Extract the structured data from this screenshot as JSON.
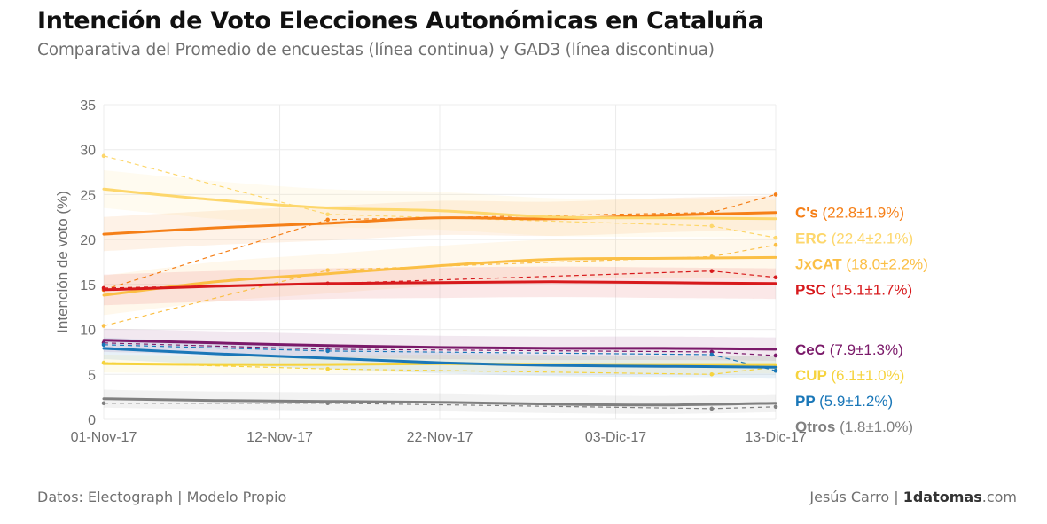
{
  "title": "Intención de Voto Elecciones Autonómicas en Cataluña",
  "subtitle": "Comparativa del Promedio de encuestas (línea continua) y GAD3 (línea discontinua)",
  "footer": {
    "source": "Datos: Electograph | Modelo Propio",
    "author": "Jesús Carro | ",
    "brand_bold": "1datomas",
    "brand_suffix": ".com"
  },
  "chart_data": {
    "type": "line",
    "title": "Intención de Voto Elecciones Autonómicas en Cataluña",
    "ylabel": "Intención de voto (%)",
    "xlabel": "",
    "ylim": [
      0,
      35
    ],
    "yticks": [
      0,
      5,
      10,
      15,
      20,
      25,
      30,
      35
    ],
    "xlim": [
      "2017-11-01",
      "2017-12-13"
    ],
    "xticks": [
      {
        "date": "2017-11-01",
        "label": "01-Nov-17"
      },
      {
        "date": "2017-11-12",
        "label": "12-Nov-17"
      },
      {
        "date": "2017-11-22",
        "label": "22-Nov-17"
      },
      {
        "date": "2017-12-03",
        "label": "03-Dic-17"
      },
      {
        "date": "2017-12-13",
        "label": "13-Dic-17"
      }
    ],
    "grid": true,
    "legend": "right, end-of-line labels",
    "series": [
      {
        "name": "C's",
        "value_label": "(22.8±1.9%)",
        "color": "#f57f17",
        "margin": 1.9,
        "average": [
          [
            "2017-11-01",
            20.6
          ],
          [
            "2017-11-08",
            21.3
          ],
          [
            "2017-11-15",
            21.8
          ],
          [
            "2017-11-22",
            22.4
          ],
          [
            "2017-11-29",
            22.3
          ],
          [
            "2017-12-06",
            22.7
          ],
          [
            "2017-12-13",
            23.0
          ]
        ],
        "gad3": [
          [
            "2017-11-01",
            14.4
          ],
          [
            "2017-11-15",
            22.2
          ],
          [
            "2017-12-09",
            23.0
          ],
          [
            "2017-12-13",
            25.0
          ]
        ]
      },
      {
        "name": "ERC",
        "value_label": "(22.4±2.1%)",
        "color": "#fdd76c",
        "margin": 2.1,
        "average": [
          [
            "2017-11-01",
            25.6
          ],
          [
            "2017-11-08",
            24.4
          ],
          [
            "2017-11-15",
            23.5
          ],
          [
            "2017-11-22",
            23.2
          ],
          [
            "2017-11-29",
            22.5
          ],
          [
            "2017-12-06",
            22.4
          ],
          [
            "2017-12-13",
            22.3
          ]
        ],
        "gad3": [
          [
            "2017-11-01",
            29.3
          ],
          [
            "2017-11-15",
            22.8
          ],
          [
            "2017-12-09",
            21.5
          ],
          [
            "2017-12-13",
            20.2
          ]
        ]
      },
      {
        "name": "JxCAT",
        "value_label": "(18.0±2.2%)",
        "color": "#fbbf45",
        "margin": 2.2,
        "average": [
          [
            "2017-11-01",
            13.8
          ],
          [
            "2017-11-08",
            15.3
          ],
          [
            "2017-11-15",
            16.2
          ],
          [
            "2017-11-22",
            17.1
          ],
          [
            "2017-11-29",
            17.8
          ],
          [
            "2017-12-06",
            17.9
          ],
          [
            "2017-12-13",
            18.0
          ]
        ],
        "gad3": [
          [
            "2017-11-01",
            10.4
          ],
          [
            "2017-11-15",
            16.6
          ],
          [
            "2017-12-09",
            18.1
          ],
          [
            "2017-12-13",
            19.4
          ]
        ]
      },
      {
        "name": "PSC",
        "value_label": "(15.1±1.7%)",
        "color": "#d7191c",
        "margin": 1.7,
        "average": [
          [
            "2017-11-01",
            14.4
          ],
          [
            "2017-11-08",
            14.8
          ],
          [
            "2017-11-15",
            15.1
          ],
          [
            "2017-11-22",
            15.2
          ],
          [
            "2017-11-29",
            15.3
          ],
          [
            "2017-12-06",
            15.2
          ],
          [
            "2017-12-13",
            15.1
          ]
        ],
        "gad3": [
          [
            "2017-11-01",
            14.6
          ],
          [
            "2017-11-15",
            15.1
          ],
          [
            "2017-12-09",
            16.5
          ],
          [
            "2017-12-13",
            15.8
          ]
        ]
      },
      {
        "name": "CeC",
        "value_label": "(7.9±1.3%)",
        "color": "#7b1a6a",
        "margin": 1.3,
        "average": [
          [
            "2017-11-01",
            8.8
          ],
          [
            "2017-11-08",
            8.5
          ],
          [
            "2017-11-15",
            8.2
          ],
          [
            "2017-11-22",
            8.0
          ],
          [
            "2017-11-29",
            7.9
          ],
          [
            "2017-12-06",
            7.9
          ],
          [
            "2017-12-13",
            7.8
          ]
        ],
        "gad3": [
          [
            "2017-11-01",
            8.5
          ],
          [
            "2017-11-15",
            7.8
          ],
          [
            "2017-12-09",
            7.5
          ],
          [
            "2017-12-13",
            7.1
          ]
        ]
      },
      {
        "name": "CUP",
        "value_label": "(6.1±1.0%)",
        "color": "#f6d33d",
        "margin": 1.0,
        "average": [
          [
            "2017-11-01",
            6.2
          ],
          [
            "2017-11-08",
            6.1
          ],
          [
            "2017-11-15",
            6.1
          ],
          [
            "2017-11-22",
            6.2
          ],
          [
            "2017-11-29",
            6.1
          ],
          [
            "2017-12-06",
            6.1
          ],
          [
            "2017-12-13",
            6.1
          ]
        ],
        "gad3": [
          [
            "2017-11-01",
            6.3
          ],
          [
            "2017-11-15",
            5.6
          ],
          [
            "2017-12-09",
            5.0
          ],
          [
            "2017-12-13",
            5.8
          ]
        ]
      },
      {
        "name": "PP",
        "value_label": "(5.9±1.2%)",
        "color": "#1a77b8",
        "margin": 1.2,
        "average": [
          [
            "2017-11-01",
            7.9
          ],
          [
            "2017-11-08",
            7.3
          ],
          [
            "2017-11-15",
            6.8
          ],
          [
            "2017-11-22",
            6.3
          ],
          [
            "2017-11-29",
            6.0
          ],
          [
            "2017-12-06",
            5.9
          ],
          [
            "2017-12-13",
            5.8
          ]
        ],
        "gad3": [
          [
            "2017-11-01",
            8.3
          ],
          [
            "2017-11-15",
            7.6
          ],
          [
            "2017-12-09",
            7.2
          ],
          [
            "2017-12-13",
            5.4
          ]
        ]
      },
      {
        "name": "Otros",
        "value_label": "(1.8±1.0%)",
        "color": "#808080",
        "margin": 1.0,
        "average": [
          [
            "2017-11-01",
            2.3
          ],
          [
            "2017-11-08",
            2.1
          ],
          [
            "2017-11-15",
            2.0
          ],
          [
            "2017-11-22",
            1.9
          ],
          [
            "2017-11-29",
            1.7
          ],
          [
            "2017-12-06",
            1.6
          ],
          [
            "2017-12-13",
            1.8
          ]
        ],
        "gad3": [
          [
            "2017-11-01",
            1.8
          ],
          [
            "2017-11-15",
            1.8
          ],
          [
            "2017-12-09",
            1.2
          ],
          [
            "2017-12-13",
            1.4
          ]
        ]
      }
    ]
  }
}
